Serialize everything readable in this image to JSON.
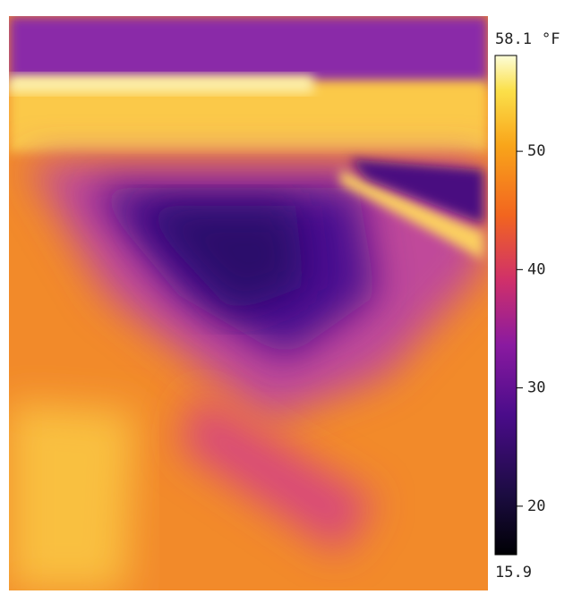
{
  "colorbar": {
    "min": 15.9,
    "max": 58.1,
    "unit": "°F",
    "ticks": [
      20,
      30,
      40,
      50
    ]
  }
}
